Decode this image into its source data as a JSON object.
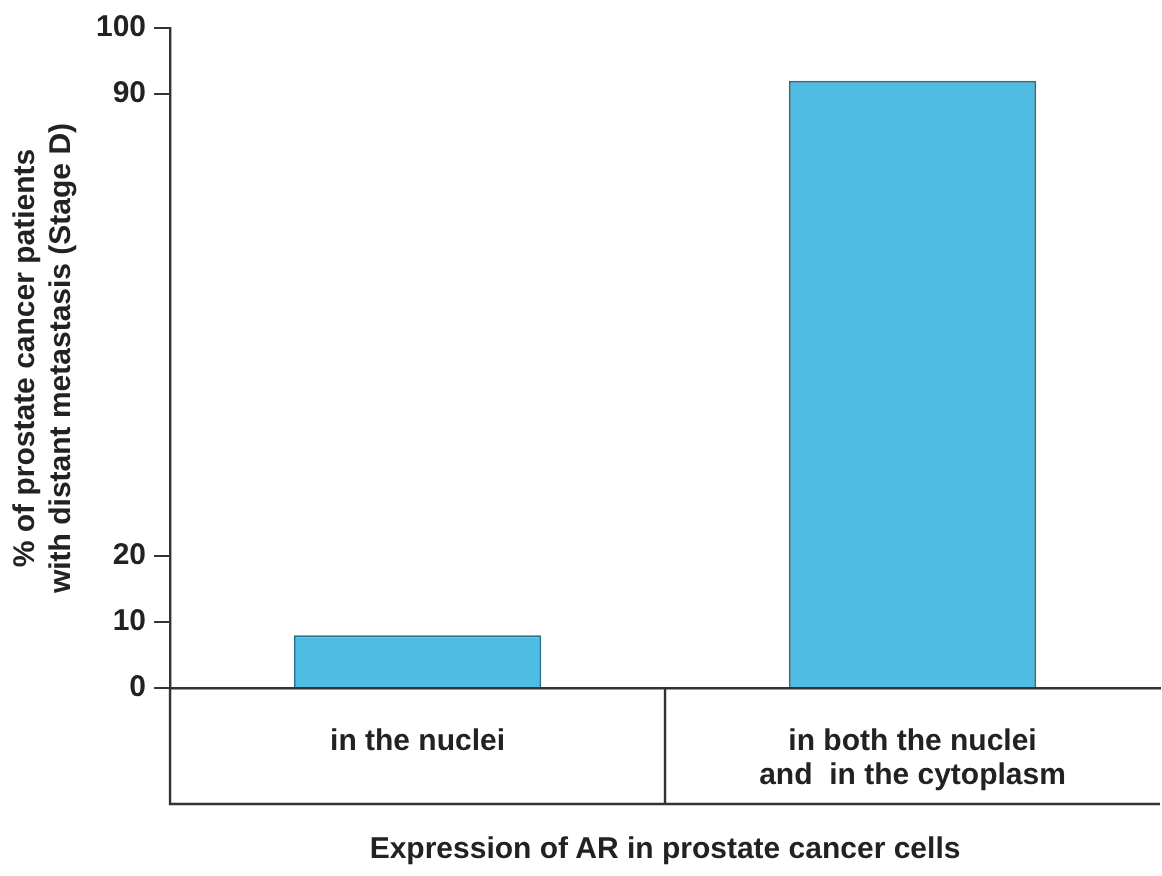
{
  "chart_data": {
    "type": "bar",
    "categories": [
      "in the nuclei",
      "in both the nuclei\nand  in the cytoplasm"
    ],
    "values": [
      8,
      92
    ],
    "color": "#4fbde3",
    "xlabel": "Expression of AR in prostate cancer cells",
    "ylabel": "% of prostate cancer patients\nwith distant metastasis (Stage D)",
    "ylim": [
      0,
      100
    ],
    "yticks": [
      0,
      10,
      20,
      90,
      100
    ]
  }
}
